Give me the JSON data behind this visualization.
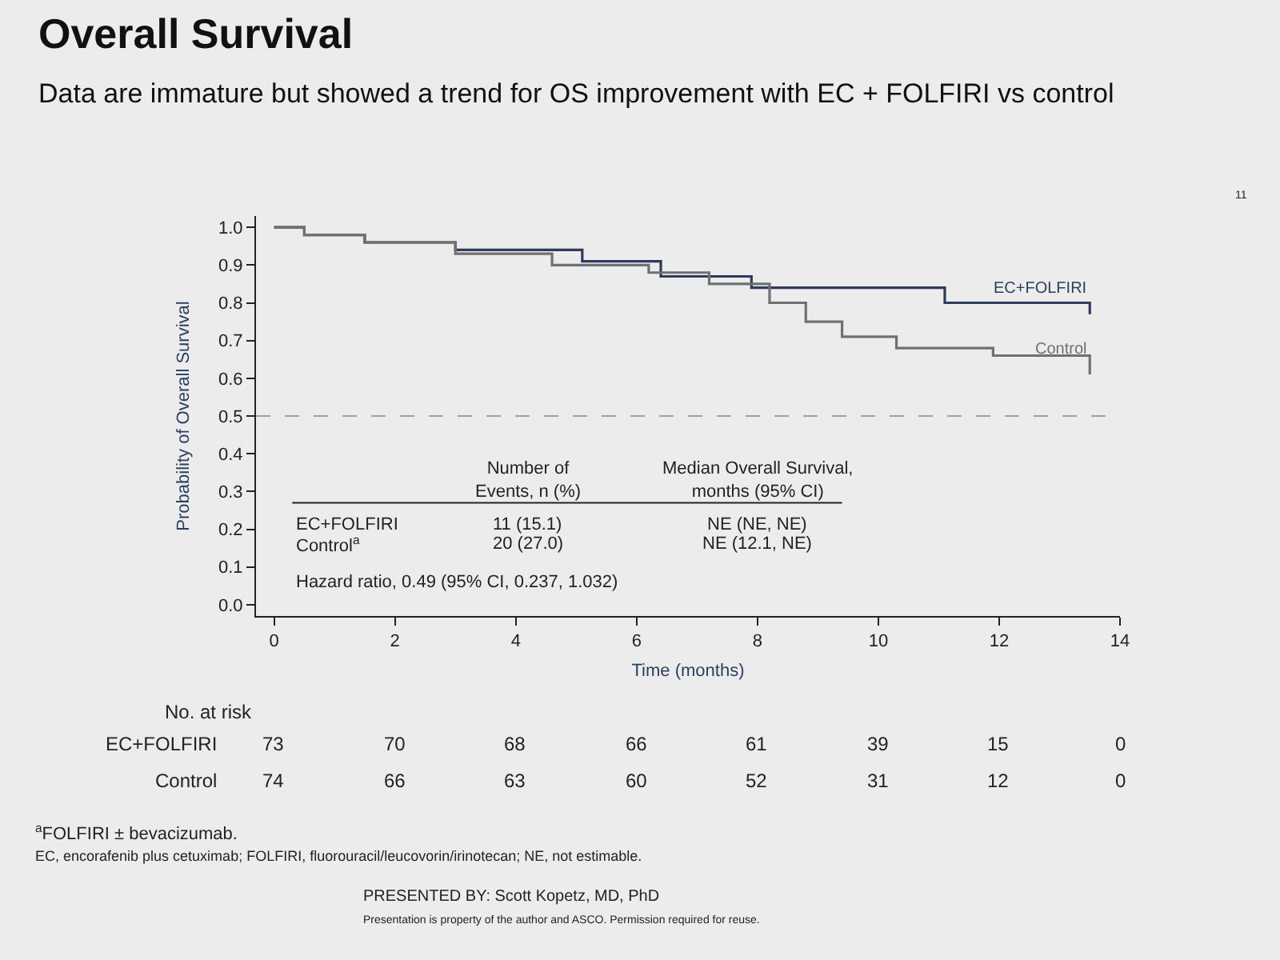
{
  "chart_data": {
    "type": "step",
    "title": "Overall Survival",
    "subtitle": "Data are immature but showed a trend for OS improvement with EC + FOLFIRI vs control",
    "xlabel": "Time (months)",
    "ylabel": "Probability of Overall Survival",
    "xlim": [
      -0.3,
      14
    ],
    "xticks": [
      0,
      2,
      4,
      6,
      8,
      10,
      12,
      14
    ],
    "ylim": [
      -0.03,
      1.03
    ],
    "yticks": [
      {
        "value": 0,
        "label": "0.0"
      },
      0.1,
      0.2,
      0.3,
      0.4,
      0.5,
      0.6,
      0.7,
      0.8,
      0.9,
      {
        "value": 1,
        "label": "1.0"
      }
    ],
    "grid": false,
    "legend": false,
    "marker": "none",
    "line_style": "solid",
    "ref_lines": [
      {
        "axis": "y",
        "value": 0.5,
        "label": null,
        "color": "#a0a0a0",
        "line_style": "dashed"
      }
    ],
    "series": [
      {
        "name": "EC+FOLFIRI",
        "color": "#2f3b5e",
        "x": [
          0,
          0.5,
          1.5,
          3.0,
          5.1,
          6.4,
          7.9,
          11.1,
          13.5
        ],
        "values": [
          1.0,
          0.98,
          0.96,
          0.94,
          0.91,
          0.87,
          0.84,
          0.8,
          0.77
        ]
      },
      {
        "name": "Control",
        "color": "#707070",
        "x": [
          0,
          0.5,
          1.5,
          3.0,
          4.6,
          6.2,
          7.2,
          8.2,
          8.8,
          9.4,
          10.3,
          11.9,
          13.5
        ],
        "values": [
          1.0,
          0.98,
          0.96,
          0.93,
          0.9,
          0.88,
          0.85,
          0.8,
          0.75,
          0.71,
          0.68,
          0.66,
          0.61
        ]
      }
    ],
    "annotations": [
      "No. at risk",
      "EC+FOLFIRI",
      "Control",
      "73",
      "70",
      "68",
      "66",
      "61",
      "39",
      "15",
      "0",
      "74",
      "66",
      "63",
      "60",
      "52",
      "31",
      "12",
      "0",
      "Number of\nEvents, n (%)",
      "Median Overall Survival,\nmonths (95% CI)",
      "EC+FOLFIRI",
      "Control$^{a}$",
      "11 (15.1)",
      "20 (27.0)",
      "NE (NE, NE)",
      "NE (12.1, NE)",
      "Hazard ratio, 0.49 (95% CI, 0.237, 1.032)",
      "$^{a}$FOLFIRI ± bevacizumab.",
      "EC, encorafenib plus cetuximab; FOLFIRI, fluorouracil/leucovorin/irinotecan; NE, not estimable.",
      "PRESENTED BY: Scott Kopetz, MD, PhD",
      "Presentation is property of the author and ASCO. Permission required for reuse.",
      "11"
    ]
  }
}
